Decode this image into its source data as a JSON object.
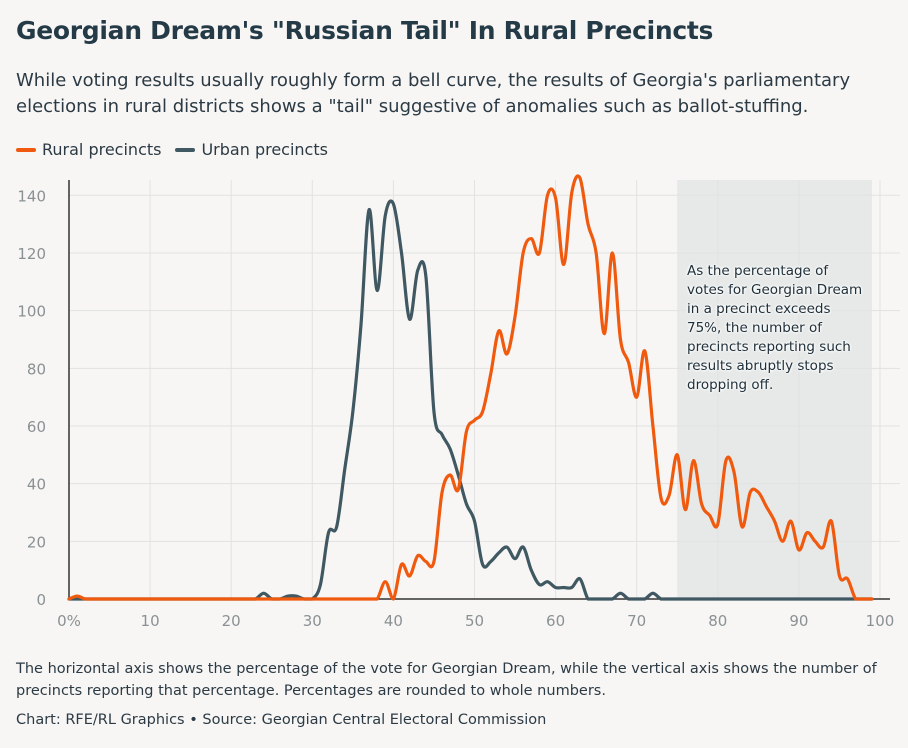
{
  "title": "Georgian Dream's \"Russian Tail\" In Rural Precincts",
  "subtitle": "While voting results usually roughly form a bell curve, the results of Georgia's parliamentary elections in rural districts shows a \"tail\" suggestive of anomalies such as ballot-stuffing.",
  "footnote": "The horizontal axis shows the percentage of the vote for Georgian Dream, while the vertical axis shows the number of precincts reporting that percentage. Percentages are rounded to whole numbers.",
  "credit": "Chart: RFE/RL Graphics • Source: Georgian Central Electoral Commission",
  "colors": {
    "rural": "#f05a0f",
    "urban": "#405862",
    "highlight": "#e6e9e8",
    "grid": "#e2e2e2"
  },
  "chart_data": {
    "type": "line",
    "xlabel": "",
    "ylabel": "",
    "xlim": [
      0,
      100
    ],
    "ylim": [
      0,
      140
    ],
    "x_ticks": [
      "0%",
      "10",
      "20",
      "30",
      "40",
      "50",
      "60",
      "70",
      "80",
      "90",
      "100"
    ],
    "y_ticks": [
      "0",
      "20",
      "40",
      "60",
      "80",
      "100",
      "120",
      "140"
    ],
    "grid": true,
    "legend_position": "top-left",
    "highlight_range": [
      75,
      99
    ],
    "annotation": "As the percentage of votes for Georgian Dream in a precinct exceeds 75%, the number of precincts reporting such results abruptly stops dropping off.",
    "series": [
      {
        "name": "Rural precincts",
        "x": [
          0,
          1,
          2,
          3,
          4,
          5,
          6,
          7,
          8,
          9,
          10,
          11,
          12,
          13,
          14,
          15,
          16,
          17,
          18,
          19,
          20,
          21,
          22,
          23,
          24,
          25,
          26,
          27,
          28,
          29,
          30,
          31,
          32,
          33,
          34,
          35,
          36,
          37,
          38,
          39,
          40,
          41,
          42,
          43,
          44,
          45,
          46,
          47,
          48,
          49,
          50,
          51,
          52,
          53,
          54,
          55,
          56,
          57,
          58,
          59,
          60,
          61,
          62,
          63,
          64,
          65,
          66,
          67,
          68,
          69,
          70,
          71,
          72,
          73,
          74,
          75,
          76,
          77,
          78,
          79,
          80,
          81,
          82,
          83,
          84,
          85,
          86,
          87,
          88,
          89,
          90,
          91,
          92,
          93,
          94,
          95,
          96,
          97,
          98,
          99
        ],
        "values": [
          0,
          1,
          0,
          0,
          0,
          0,
          0,
          0,
          0,
          0,
          0,
          0,
          0,
          0,
          0,
          0,
          0,
          0,
          0,
          0,
          0,
          0,
          0,
          0,
          0,
          0,
          0,
          0,
          0,
          0,
          0,
          0,
          0,
          0,
          0,
          0,
          0,
          0,
          0,
          6,
          0,
          12,
          8,
          15,
          13,
          13,
          37,
          43,
          38,
          58,
          62,
          65,
          78,
          93,
          85,
          98,
          120,
          125,
          120,
          140,
          139,
          116,
          141,
          146,
          130,
          120,
          92,
          120,
          90,
          82,
          70,
          86,
          60,
          35,
          36,
          50,
          31,
          48,
          33,
          29,
          26,
          48,
          44,
          25,
          37,
          37,
          32,
          27,
          20,
          27,
          17,
          23,
          20,
          18,
          27,
          8,
          7,
          0,
          0,
          0
        ],
        "color": "#f05a0f"
      },
      {
        "name": "Urban precincts",
        "x": [
          0,
          1,
          2,
          3,
          4,
          5,
          6,
          7,
          8,
          9,
          10,
          11,
          12,
          13,
          14,
          15,
          16,
          17,
          18,
          19,
          20,
          21,
          22,
          23,
          24,
          25,
          26,
          27,
          28,
          29,
          30,
          31,
          32,
          33,
          34,
          35,
          36,
          37,
          38,
          39,
          40,
          41,
          42,
          43,
          44,
          45,
          46,
          47,
          48,
          49,
          50,
          51,
          52,
          53,
          54,
          55,
          56,
          57,
          58,
          59,
          60,
          61,
          62,
          63,
          64,
          65,
          66,
          67,
          68,
          69,
          70,
          71,
          72,
          73,
          74,
          75,
          76,
          77,
          78,
          79,
          80,
          81,
          82,
          83,
          84,
          85,
          86,
          87,
          88,
          89,
          90,
          91,
          92,
          93,
          94,
          95,
          96,
          97,
          98,
          99
        ],
        "values": [
          0,
          0,
          0,
          0,
          0,
          0,
          0,
          0,
          0,
          0,
          0,
          0,
          0,
          0,
          0,
          0,
          0,
          0,
          0,
          0,
          0,
          0,
          0,
          0,
          2,
          0,
          0,
          1,
          1,
          0,
          0,
          5,
          23,
          25,
          45,
          65,
          95,
          135,
          107,
          133,
          137,
          120,
          97,
          114,
          112,
          65,
          57,
          52,
          43,
          33,
          27,
          12,
          13,
          16,
          18,
          14,
          18,
          10,
          5,
          6,
          4,
          4,
          4,
          7,
          0,
          0,
          0,
          0,
          2,
          0,
          0,
          0,
          2,
          0,
          0,
          0,
          0,
          0,
          0,
          0,
          0,
          0,
          0,
          0,
          0,
          0,
          0,
          0,
          0,
          0,
          0,
          0,
          0,
          0,
          0,
          0,
          0,
          0,
          0,
          0
        ],
        "color": "#405862"
      }
    ]
  }
}
